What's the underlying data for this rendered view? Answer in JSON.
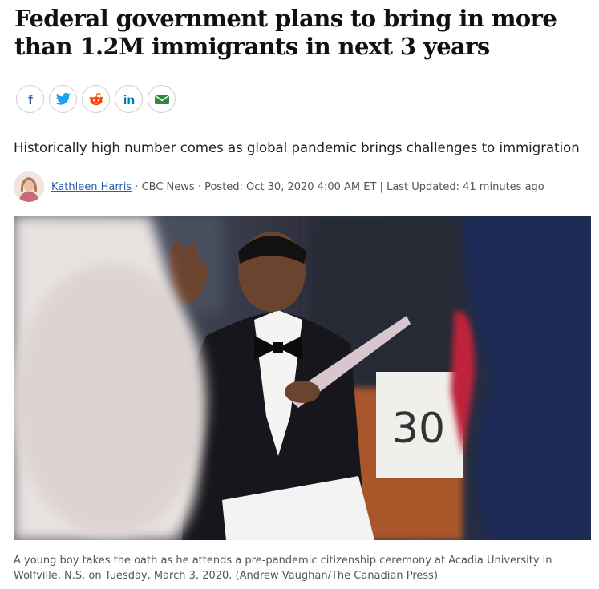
{
  "article": {
    "headline": "Federal government plans to bring in more than 1.2M immigrants in next 3 years",
    "subheadline": "Historically high number comes as global pandemic brings challenges to immigration"
  },
  "share": {
    "items": [
      {
        "icon": "facebook-icon",
        "color": "#3b5998"
      },
      {
        "icon": "twitter-icon",
        "color": "#1da1f2"
      },
      {
        "icon": "reddit-icon",
        "color": "#ff4500"
      },
      {
        "icon": "linkedin-icon",
        "color": "#0077b5"
      },
      {
        "icon": "email-icon",
        "color": "#2e8b3d"
      }
    ]
  },
  "byline": {
    "author": "Kathleen Harris",
    "separator": " · ",
    "source": "CBC News",
    "posted": "Posted: Oct 30, 2020 4:00 AM ET",
    "divider": " | ",
    "updated": "Last Updated: 41 minutes ago"
  },
  "photo": {
    "placard_number": "30"
  },
  "caption": {
    "text": "A young boy takes the oath as he attends a pre-pandemic citizenship ceremony at Acadia University in Wolfville, N.S. on Tuesday, March 3, 2020. (Andrew Vaughan/The Canadian Press)"
  }
}
